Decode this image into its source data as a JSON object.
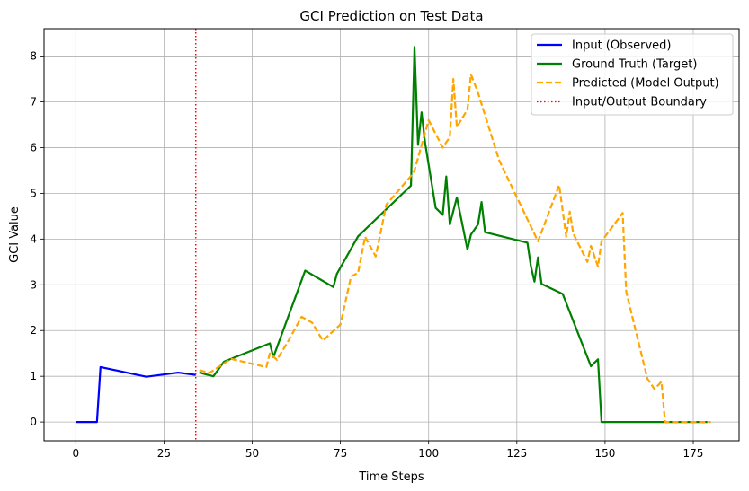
{
  "chart_data": {
    "type": "line",
    "title": "GCI Prediction on Test Data",
    "xlabel": "Time Steps",
    "ylabel": "GCI Value",
    "xlim": [
      -9,
      188
    ],
    "ylim": [
      -0.41,
      8.6
    ],
    "xticks": [
      0,
      25,
      50,
      75,
      100,
      125,
      150,
      175
    ],
    "yticks": [
      0,
      1,
      2,
      3,
      4,
      5,
      6,
      7,
      8
    ],
    "grid": true,
    "legend_position": "top-right",
    "series": [
      {
        "name": "Input (Observed)",
        "color": "#0000ff",
        "style": "solid",
        "points": [
          [
            0,
            0
          ],
          [
            6,
            0
          ],
          [
            7,
            1.2
          ],
          [
            20,
            0.99
          ],
          [
            29,
            1.08
          ],
          [
            34,
            1.03
          ]
        ]
      },
      {
        "name": "Ground Truth (Target)",
        "color": "#008000",
        "style": "solid",
        "points": [
          [
            35,
            1.08
          ],
          [
            39,
            1.0
          ],
          [
            42,
            1.32
          ],
          [
            55,
            1.72
          ],
          [
            56,
            1.42
          ],
          [
            65,
            3.31
          ],
          [
            73,
            2.95
          ],
          [
            74,
            3.24
          ],
          [
            80,
            4.06
          ],
          [
            95,
            5.17
          ],
          [
            96,
            8.2
          ],
          [
            97,
            6.06
          ],
          [
            98,
            6.77
          ],
          [
            99,
            6.1
          ],
          [
            102,
            4.68
          ],
          [
            104,
            4.53
          ],
          [
            105,
            5.37
          ],
          [
            106,
            4.32
          ],
          [
            108,
            4.91
          ],
          [
            111,
            3.77
          ],
          [
            112,
            4.1
          ],
          [
            114,
            4.32
          ],
          [
            115,
            4.81
          ],
          [
            116,
            4.15
          ],
          [
            128,
            3.92
          ],
          [
            129,
            3.4
          ],
          [
            130,
            3.07
          ],
          [
            131,
            3.6
          ],
          [
            132,
            3.02
          ],
          [
            138,
            2.8
          ],
          [
            146,
            1.22
          ],
          [
            148,
            1.37
          ],
          [
            149,
            0
          ],
          [
            179,
            0
          ]
        ]
      },
      {
        "name": "Predicted (Model Output)",
        "color": "#ffa500",
        "style": "dashed",
        "points": [
          [
            35,
            1.13
          ],
          [
            38,
            1.08
          ],
          [
            44,
            1.38
          ],
          [
            54,
            1.2
          ],
          [
            55,
            1.5
          ],
          [
            57,
            1.36
          ],
          [
            60,
            1.74
          ],
          [
            64,
            2.3
          ],
          [
            67,
            2.17
          ],
          [
            70,
            1.78
          ],
          [
            75,
            2.13
          ],
          [
            78,
            3.18
          ],
          [
            80,
            3.26
          ],
          [
            82,
            4.05
          ],
          [
            85,
            3.62
          ],
          [
            88,
            4.75
          ],
          [
            95,
            5.38
          ],
          [
            96,
            5.5
          ],
          [
            100,
            6.6
          ],
          [
            104,
            6.0
          ],
          [
            106,
            6.23
          ],
          [
            107,
            7.5
          ],
          [
            108,
            6.45
          ],
          [
            111,
            6.83
          ],
          [
            112,
            7.6
          ],
          [
            114,
            7.2
          ],
          [
            120,
            5.72
          ],
          [
            131,
            3.95
          ],
          [
            137,
            5.18
          ],
          [
            139,
            4.05
          ],
          [
            140,
            4.6
          ],
          [
            141,
            4.12
          ],
          [
            145,
            3.5
          ],
          [
            146,
            3.85
          ],
          [
            148,
            3.4
          ],
          [
            149,
            3.95
          ],
          [
            155,
            4.57
          ],
          [
            156,
            2.85
          ],
          [
            162,
            0.95
          ],
          [
            164,
            0.72
          ],
          [
            166,
            0.88
          ],
          [
            167,
            0
          ],
          [
            180,
            0
          ]
        ]
      },
      {
        "name": "Input/Output Boundary",
        "color": "#ff0000",
        "style": "dotted",
        "vertical_x": 34
      }
    ]
  }
}
